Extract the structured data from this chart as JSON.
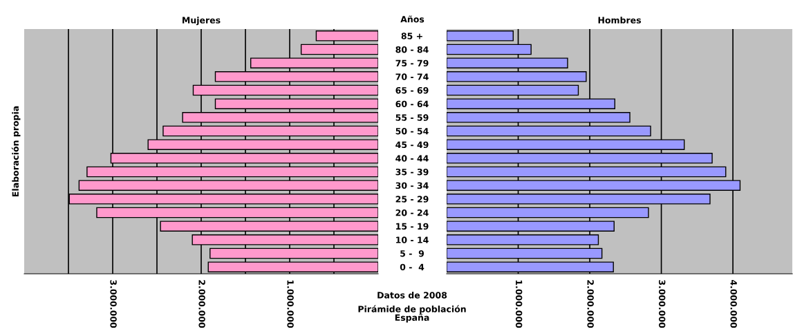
{
  "chart_data": [
    {
      "type": "bar",
      "orientation": "horizontal",
      "title": "Mujeres",
      "ylabel": "Elaboración propia",
      "categories": [
        null,
        null,
        null,
        null,
        null,
        null,
        null,
        null,
        null,
        null,
        null,
        null,
        null,
        null,
        null,
        null,
        null,
        null
      ],
      "series": [
        {
          "color": "#ff99cc",
          "values": [
            700000,
            870000,
            1440000,
            1840000,
            2090000,
            1840000,
            2210000,
            2430000,
            2600000,
            3020000,
            3290000,
            3380000,
            3490000,
            3180000,
            2460000,
            2100000,
            1900000,
            1920000
          ]
        }
      ],
      "xlim": [
        4000000,
        0
      ],
      "xticks": [
        {
          "value": 3500000,
          "label": null
        },
        {
          "value": 3000000,
          "label": "3.000.000"
        },
        {
          "value": 2500000,
          "label": null
        },
        {
          "value": 2000000,
          "label": "2.000.000"
        },
        {
          "value": 1500000,
          "label": null
        },
        {
          "value": 1000000,
          "label": "1.000.000"
        },
        {
          "value": 500000,
          "label": null
        }
      ],
      "grid": "x",
      "tick_labels": "x"
    },
    {
      "type": "bar",
      "orientation": "horizontal",
      "title": "Hombres",
      "ylabel": "Años",
      "categories": [
        "85 +",
        "80 - 84",
        "75 - 79",
        "70 - 74",
        "65 - 69",
        "60 - 64",
        "55 - 59",
        "50 - 54",
        "45 - 49",
        "40 - 44",
        "35 - 39",
        "30 - 34",
        "25 - 29",
        "20 - 24",
        "15 - 19",
        "10 - 14",
        "5 -  9",
        "0 -  4"
      ],
      "series": [
        {
          "color": "#9999ff",
          "values": [
            930000,
            1180000,
            1690000,
            1950000,
            1840000,
            2350000,
            2560000,
            2850000,
            3320000,
            3710000,
            3900000,
            4100000,
            3680000,
            2820000,
            2340000,
            2120000,
            2170000,
            2330000
          ]
        }
      ],
      "xlim": [
        0,
        4830000
      ],
      "xticks": [
        {
          "value": 1000000,
          "label": "1.000.000"
        },
        {
          "value": 2000000,
          "label": "2.000.000"
        },
        {
          "value": 3000000,
          "label": "3.000.000"
        },
        {
          "value": 4000000,
          "label": "4.000.000"
        }
      ],
      "grid": "x",
      "annotations": [
        "Datos de 2008",
        "Pirámide de población\nEspaña"
      ]
    }
  ]
}
